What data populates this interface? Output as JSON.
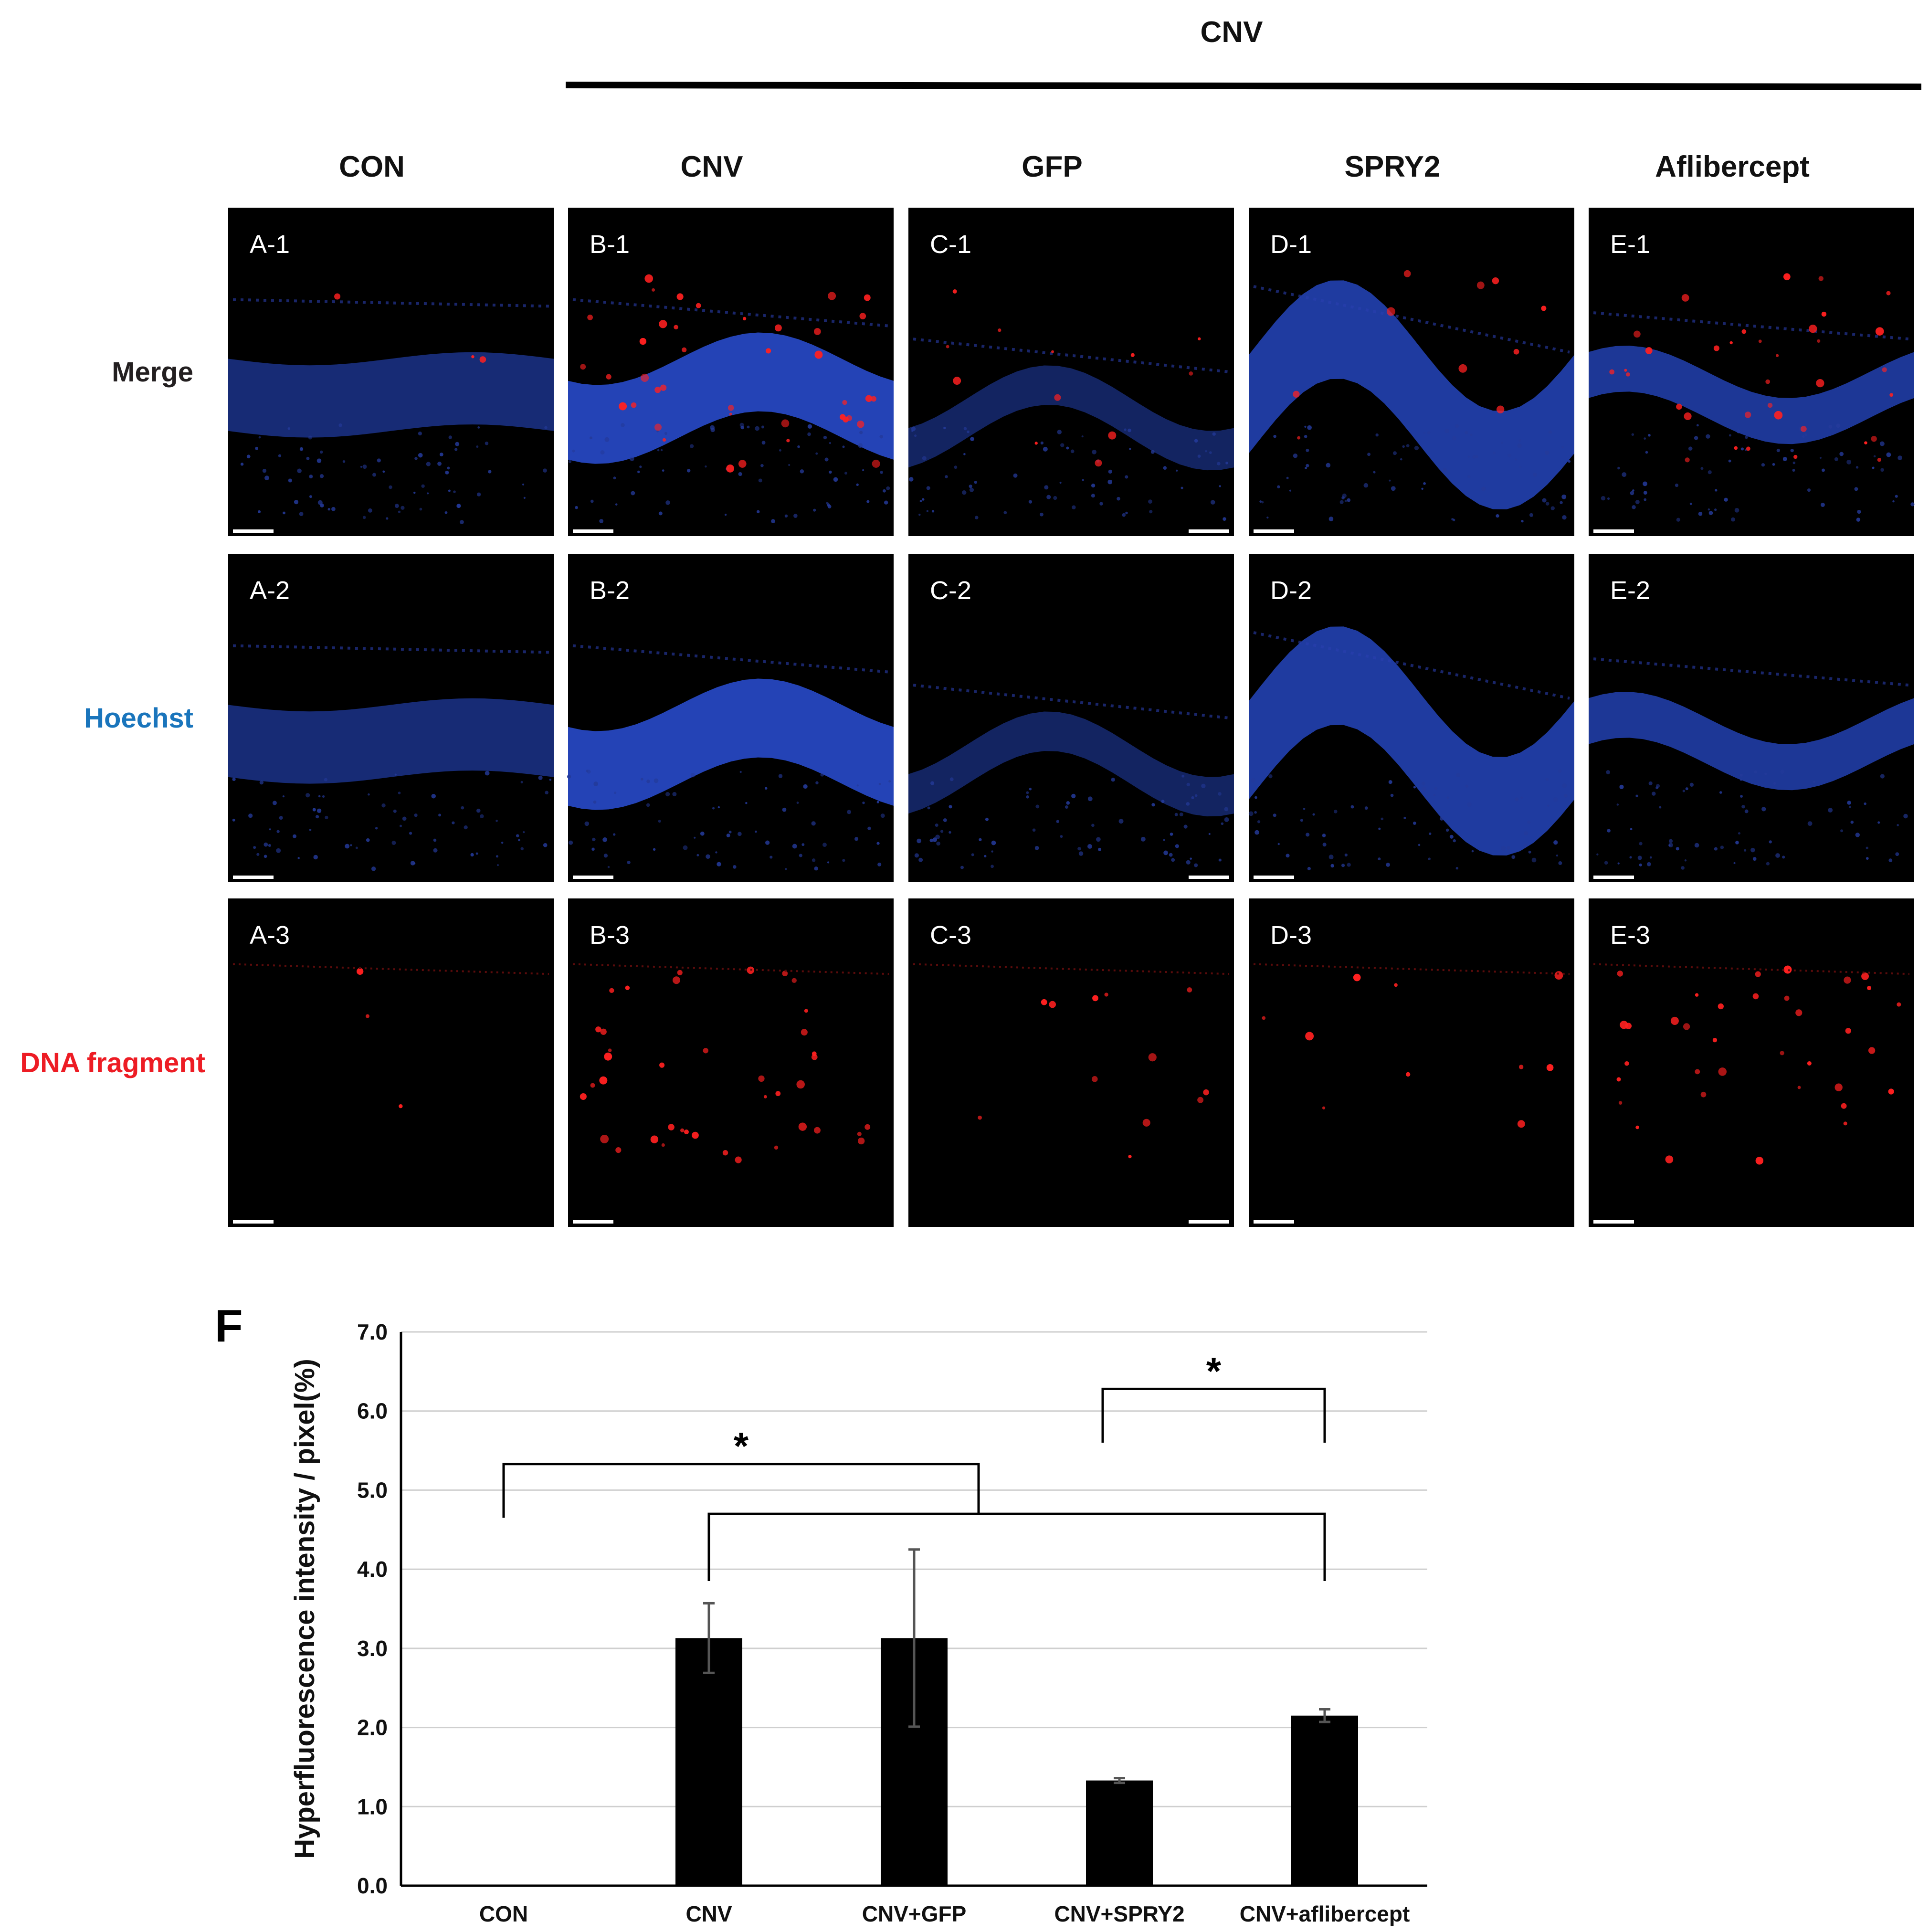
{
  "figure": {
    "group_label": "CNV",
    "columns": [
      "CON",
      "CNV",
      "GFP",
      "SPRY2",
      "Aflibercept"
    ],
    "rows": [
      {
        "label": "Merge",
        "color": "#231f20"
      },
      {
        "label": "Hoechst",
        "color": "#1a75bc"
      },
      {
        "label": "DNA fragment",
        "color": "#ed1c24"
      }
    ],
    "panels": [
      [
        "A-1",
        "B-1",
        "C-1",
        "D-1",
        "E-1"
      ],
      [
        "A-2",
        "B-2",
        "C-2",
        "D-2",
        "E-2"
      ],
      [
        "A-3",
        "B-3",
        "C-3",
        "D-3",
        "E-3"
      ]
    ],
    "panel_f_label": "F"
  },
  "chart_data": {
    "type": "bar",
    "categories": [
      "CON",
      "CNV",
      "CNV+GFP",
      "CNV+SPRY2",
      "CNV+aflibercept"
    ],
    "values": [
      0.0,
      3.13,
      3.13,
      1.33,
      2.15
    ],
    "errors": [
      0.0,
      0.44,
      1.12,
      0.03,
      0.08
    ],
    "ylabel": "Hyperfluorescence intensity / pixel(%)",
    "ylim": [
      0,
      7
    ],
    "yticks": [
      "0.0",
      "1.0",
      "2.0",
      "3.0",
      "4.0",
      "5.0",
      "6.0",
      "7.0"
    ],
    "grid": true,
    "bar_color": "#000000",
    "significance": [
      {
        "from": "CON",
        "to": "CNV",
        "mark": "*"
      },
      {
        "from": "CNV+SPRY2",
        "to": "CNV+aflibercept",
        "mark": "*"
      }
    ]
  }
}
